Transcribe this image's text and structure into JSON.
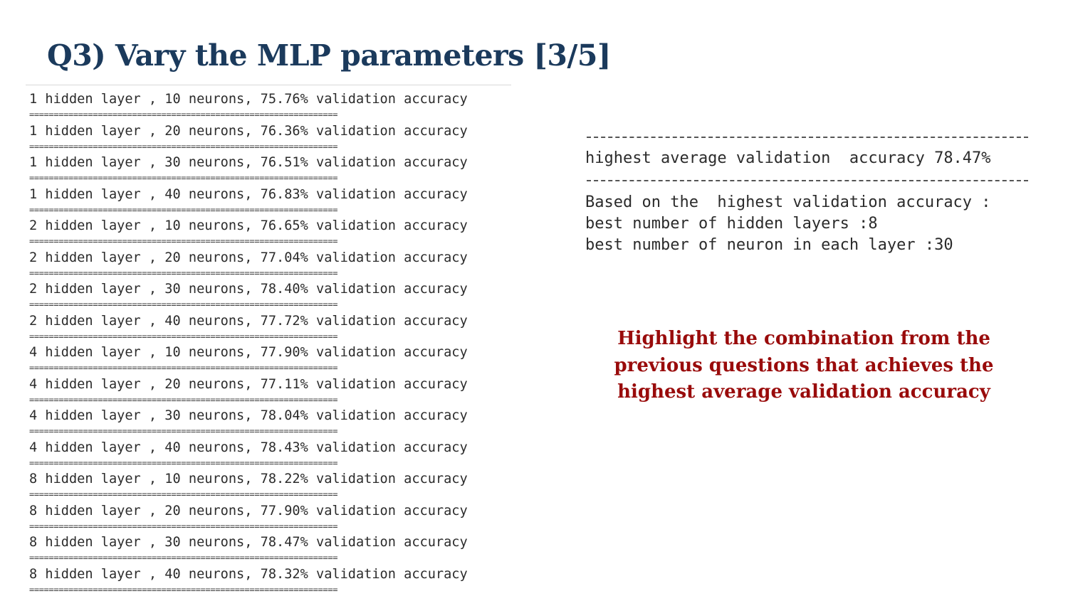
{
  "title": "Q3) Vary the MLP parameters [3/5]",
  "log": {
    "separator": "===============================================================",
    "entries": [
      "1 hidden layer , 10 neurons, 75.76% validation accuracy",
      "1 hidden layer , 20 neurons, 76.36% validation accuracy",
      "1 hidden layer , 30 neurons, 76.51% validation accuracy",
      "1 hidden layer , 40 neurons, 76.83% validation accuracy",
      "2 hidden layer , 10 neurons, 76.65% validation accuracy",
      "2 hidden layer , 20 neurons, 77.04% validation accuracy",
      "2 hidden layer , 30 neurons, 78.40% validation accuracy",
      "2 hidden layer , 40 neurons, 77.72% validation accuracy",
      "4 hidden layer , 10 neurons, 77.90% validation accuracy",
      "4 hidden layer , 20 neurons, 77.11% validation accuracy",
      "4 hidden layer , 30 neurons, 78.04% validation accuracy",
      "4 hidden layer , 40 neurons, 78.43% validation accuracy",
      "8 hidden layer , 10 neurons, 78.22% validation accuracy",
      "8 hidden layer , 20 neurons, 77.90% validation accuracy",
      "8 hidden layer , 30 neurons, 78.47% validation accuracy",
      "8 hidden layer , 40 neurons, 78.32% validation accuracy"
    ]
  },
  "result": {
    "highest": "highest average validation  accuracy 78.47%",
    "based_on": "Based on the  highest validation accuracy :",
    "best_layers": "best number of hidden layers :8",
    "best_neurons": "best number of neuron in each layer :30"
  },
  "note": "Highlight the combination from the previous questions that achieves the highest average validation accuracy",
  "colors": {
    "title": "#1b3a5c",
    "note": "#990b0b",
    "log_text": "#2b2b2b"
  }
}
